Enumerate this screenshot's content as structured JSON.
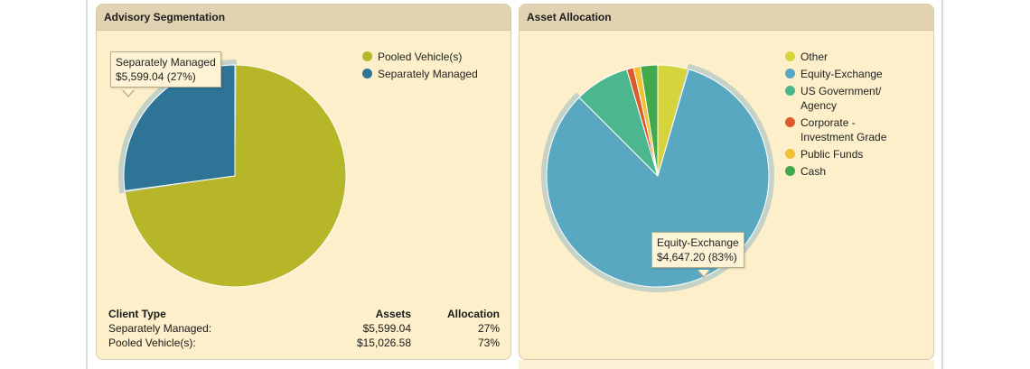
{
  "panels": {
    "left": {
      "title": "Advisory Segmentation",
      "tooltip": {
        "label": "Separately Managed",
        "value": "$5,599.04 (27%)"
      },
      "table": {
        "headers": [
          "Client Type",
          "Assets",
          "Allocation"
        ],
        "rows": [
          [
            "Separately Managed:",
            "$5,599.04",
            "27%"
          ],
          [
            "Pooled Vehicle(s):",
            "$15,026.58",
            "73%"
          ]
        ]
      }
    },
    "right": {
      "title": "Asset Allocation",
      "tooltip": {
        "label": "Equity-Exchange",
        "value": "$4,647.20 (83%)"
      }
    }
  },
  "chart_data": [
    {
      "type": "pie",
      "title": "Advisory Segmentation",
      "legend_position": "top-right",
      "categories": [
        "Pooled Vehicle(s)",
        "Separately Managed"
      ],
      "values": [
        15026.58,
        5599.04
      ],
      "percents": [
        73,
        27
      ],
      "colors": [
        "#b7b629",
        "#2e7496"
      ],
      "highlighted": "Separately Managed"
    },
    {
      "type": "pie",
      "title": "Asset Allocation",
      "legend_position": "top-right",
      "categories": [
        "Other",
        "Equity-Exchange",
        "US Government/ Agency",
        "Corporate - Investment Grade",
        "Public Funds",
        "Cash"
      ],
      "values": [
        4.5,
        83,
        8,
        1,
        1,
        2.5
      ],
      "colors": [
        "#d6d43c",
        "#58a8c1",
        "#4cb68f",
        "#dc5a2c",
        "#f1c136",
        "#44a84d"
      ],
      "highlighted": "Equity-Exchange",
      "highlighted_value": "$4,647.20 (83%)"
    }
  ]
}
